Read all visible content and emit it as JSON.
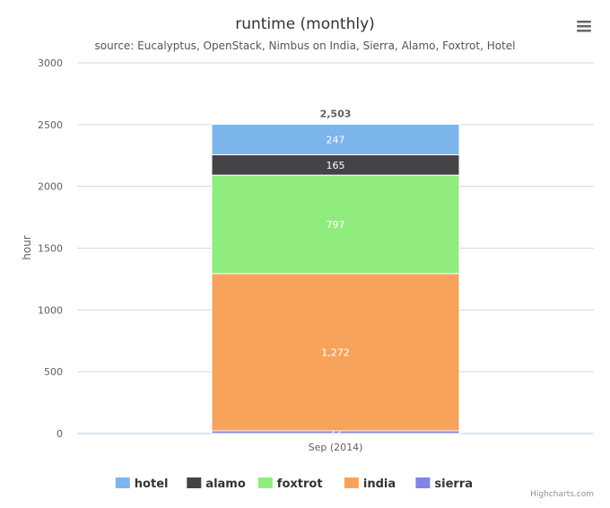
{
  "chart_data": {
    "type": "bar",
    "stacked": true,
    "title": "runtime (monthly)",
    "subtitle": "source: Eucalyptus, OpenStack, Nimbus on India, Sierra, Alamo, Foxtrot, Hotel",
    "categories": [
      "Sep (2014)"
    ],
    "ylabel": "hour",
    "ylim": [
      0,
      3000
    ],
    "yticks": [
      0,
      500,
      1000,
      1500,
      2000,
      2500,
      3000
    ],
    "grid": true,
    "legend_position": "bottom-center",
    "series": [
      {
        "name": "hotel",
        "color": "#7cb5ec",
        "values": [
          247
        ],
        "label": "247"
      },
      {
        "name": "alamo",
        "color": "#434348",
        "values": [
          165
        ],
        "label": "165"
      },
      {
        "name": "foxtrot",
        "color": "#90ed7d",
        "values": [
          797
        ],
        "label": "797"
      },
      {
        "name": "india",
        "color": "#f7a35c",
        "values": [
          1272
        ],
        "label": "1,272"
      },
      {
        "name": "sierra",
        "color": "#8085e9",
        "values": [
          22
        ],
        "label": "22"
      }
    ],
    "totals": [
      "2,503"
    ]
  },
  "credits": "Highcharts.com",
  "menu_icon": "hamburger-menu-icon"
}
